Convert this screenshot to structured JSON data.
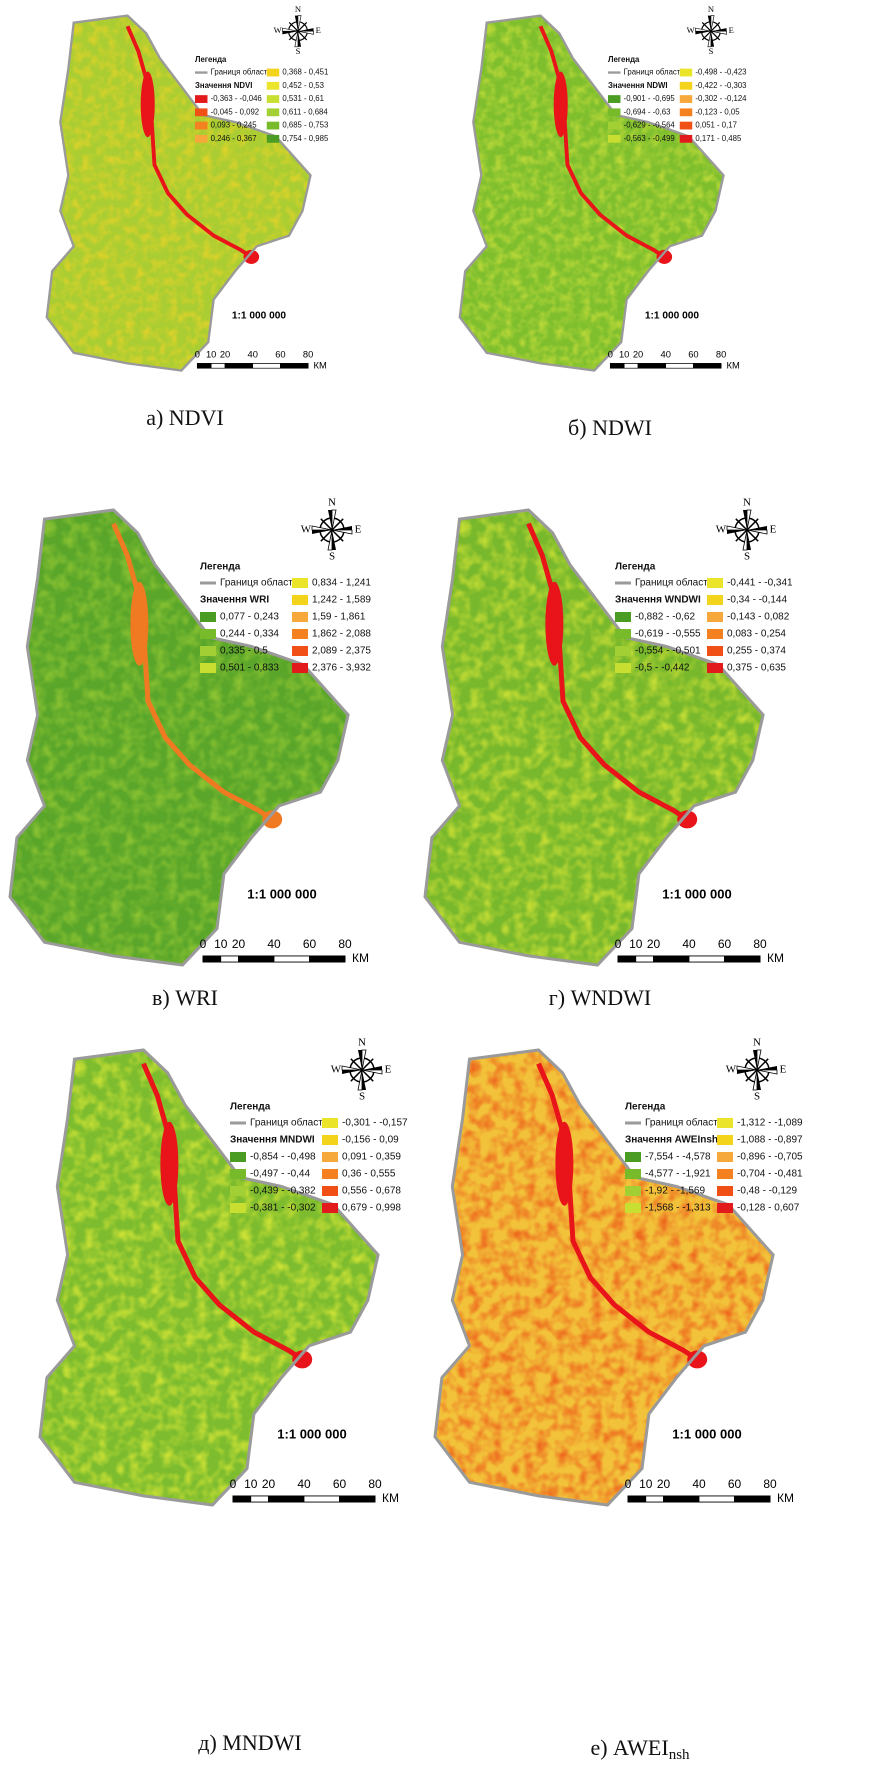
{
  "common": {
    "legend_title": "Легенда",
    "boundary_label": "Границя області",
    "scale": "1:1 000 000",
    "scale_ticks": [
      0,
      10,
      20,
      40,
      60,
      80
    ],
    "scale_unit": "КМ",
    "compass": {
      "n": "N",
      "s": "S",
      "e": "E",
      "w": "W"
    }
  },
  "panels": [
    {
      "caption": "а) NDVI",
      "value_title": "Значення NDVI",
      "map_colors": {
        "base": "#a9cd32",
        "texture": "#dcd22a",
        "water": "#e8141a"
      },
      "classes": [
        {
          "label": "-0,363 - -0,046",
          "color": "#e31a1c"
        },
        {
          "label": "-0,045 - 0,092",
          "color": "#f04f16"
        },
        {
          "label": "0,093 - 0,245",
          "color": "#f5801f"
        },
        {
          "label": "0,246 - 0,367",
          "color": "#f7a83a"
        },
        {
          "label": "0,368 - 0,451",
          "color": "#f4d31c"
        },
        {
          "label": "0,452 - 0,53",
          "color": "#eae52a"
        },
        {
          "label": "0,531 - 0,61",
          "color": "#c8de30"
        },
        {
          "label": "0,611 - 0,684",
          "color": "#a2cf33"
        },
        {
          "label": "0,685 - 0,753",
          "color": "#77bb2b"
        },
        {
          "label": "0,754 - 0,985",
          "color": "#4a9d22"
        }
      ]
    },
    {
      "caption": "б) NDWI",
      "value_title": "Значення NDWI",
      "map_colors": {
        "base": "#7fbf2e",
        "texture": "#b9d838",
        "water": "#e8141a"
      },
      "classes": [
        {
          "label": "-0,901 - -0,695",
          "color": "#4a9d22"
        },
        {
          "label": "-0,694 - -0,63",
          "color": "#77bb2b"
        },
        {
          "label": "-0,629 - -0,564",
          "color": "#a2cf33"
        },
        {
          "label": "-0,563 - -0,499",
          "color": "#c8de30"
        },
        {
          "label": "-0,498 - -0,423",
          "color": "#eae52a"
        },
        {
          "label": "-0,422 - -0,303",
          "color": "#f4d31c"
        },
        {
          "label": "-0,302 - -0,124",
          "color": "#f7a83a"
        },
        {
          "label": "-0,123 - 0,05",
          "color": "#f5801f"
        },
        {
          "label": "0,051 - 0,17",
          "color": "#f04f16"
        },
        {
          "label": "0,171 - 0,485",
          "color": "#e31a1c"
        }
      ]
    },
    {
      "caption": "в) WRI",
      "value_title": "Значення WRI",
      "map_colors": {
        "base": "#5aa62a",
        "texture": "#8ac232",
        "water": "#f07a22"
      },
      "classes": [
        {
          "label": "0,077 - 0,243",
          "color": "#4a9d22"
        },
        {
          "label": "0,244 - 0,334",
          "color": "#77bb2b"
        },
        {
          "label": "0,335 - 0,5",
          "color": "#a2cf33"
        },
        {
          "label": "0,501 - 0,833",
          "color": "#c8de30"
        },
        {
          "label": "0,834 - 1,241",
          "color": "#eae52a"
        },
        {
          "label": "1,242 - 1,589",
          "color": "#f4d31c"
        },
        {
          "label": "1,59 - 1,861",
          "color": "#f7a83a"
        },
        {
          "label": "1,862 - 2,088",
          "color": "#f5801f"
        },
        {
          "label": "2,089 - 2,375",
          "color": "#f04f16"
        },
        {
          "label": "2,376 - 3,932",
          "color": "#e31a1c"
        }
      ]
    },
    {
      "caption": "г) WNDWI",
      "value_title": "Значення WNDWI",
      "map_colors": {
        "base": "#78b82c",
        "texture": "#c3dc34",
        "water": "#e8141a"
      },
      "classes": [
        {
          "label": "-0,882 - -0,62",
          "color": "#4a9d22"
        },
        {
          "label": "-0,619 - -0,555",
          "color": "#77bb2b"
        },
        {
          "label": "-0,554 - -0,501",
          "color": "#a2cf33"
        },
        {
          "label": "-0,5 - -0,442",
          "color": "#c8de30"
        },
        {
          "label": "-0,441 - -0,341",
          "color": "#eae52a"
        },
        {
          "label": "-0,34 - -0,144",
          "color": "#f4d31c"
        },
        {
          "label": "-0,143 - 0,082",
          "color": "#f7a83a"
        },
        {
          "label": "0,083 - 0,254",
          "color": "#f5801f"
        },
        {
          "label": "0,255 - 0,374",
          "color": "#f04f16"
        },
        {
          "label": "0,375 - 0,635",
          "color": "#e31a1c"
        }
      ]
    },
    {
      "caption": "д) MNDWI",
      "value_title": "Значення MNDWI",
      "map_colors": {
        "base": "#7cbc2e",
        "texture": "#c9e035",
        "water": "#e8141a"
      },
      "classes": [
        {
          "label": "-0,854 - -0,498",
          "color": "#4a9d22"
        },
        {
          "label": "-0,497 - -0,44",
          "color": "#77bb2b"
        },
        {
          "label": "-0,439 - -0,382",
          "color": "#a2cf33"
        },
        {
          "label": "-0,381 - -0,302",
          "color": "#c8de30"
        },
        {
          "label": "-0,301 - -0,157",
          "color": "#eae52a"
        },
        {
          "label": "-0,156 - 0,09",
          "color": "#f4d31c"
        },
        {
          "label": "0,091 - 0,359",
          "color": "#f7a83a"
        },
        {
          "label": "0,36 - 0,555",
          "color": "#f5801f"
        },
        {
          "label": "0,556 - 0,678",
          "color": "#f04f16"
        },
        {
          "label": "0,679 - 0,998",
          "color": "#e31a1c"
        }
      ]
    },
    {
      "caption": "е) AWEI",
      "caption_sub": "nsh",
      "value_title": "Значення AWEInsh",
      "map_colors": {
        "base": "#f2c23a",
        "texture": "#ee6a1e",
        "water": "#e8141a"
      },
      "classes": [
        {
          "label": "-7,554 - -4,578",
          "color": "#4a9d22"
        },
        {
          "label": "-4,577 - -1,921",
          "color": "#77bb2b"
        },
        {
          "label": "-1,92 - -1,569",
          "color": "#a2cf33"
        },
        {
          "label": "-1,568 - -1,313",
          "color": "#c8de30"
        },
        {
          "label": "-1,312 - -1,089",
          "color": "#eae52a"
        },
        {
          "label": "-1,088 - -0,897",
          "color": "#f4d31c"
        },
        {
          "label": "-0,896 - -0,705",
          "color": "#f7a83a"
        },
        {
          "label": "-0,704 - -0,481",
          "color": "#f5801f"
        },
        {
          "label": "-0,48 - -0,129",
          "color": "#f04f16"
        },
        {
          "label": "-0,128 - 0,607",
          "color": "#e31a1c"
        }
      ]
    }
  ]
}
